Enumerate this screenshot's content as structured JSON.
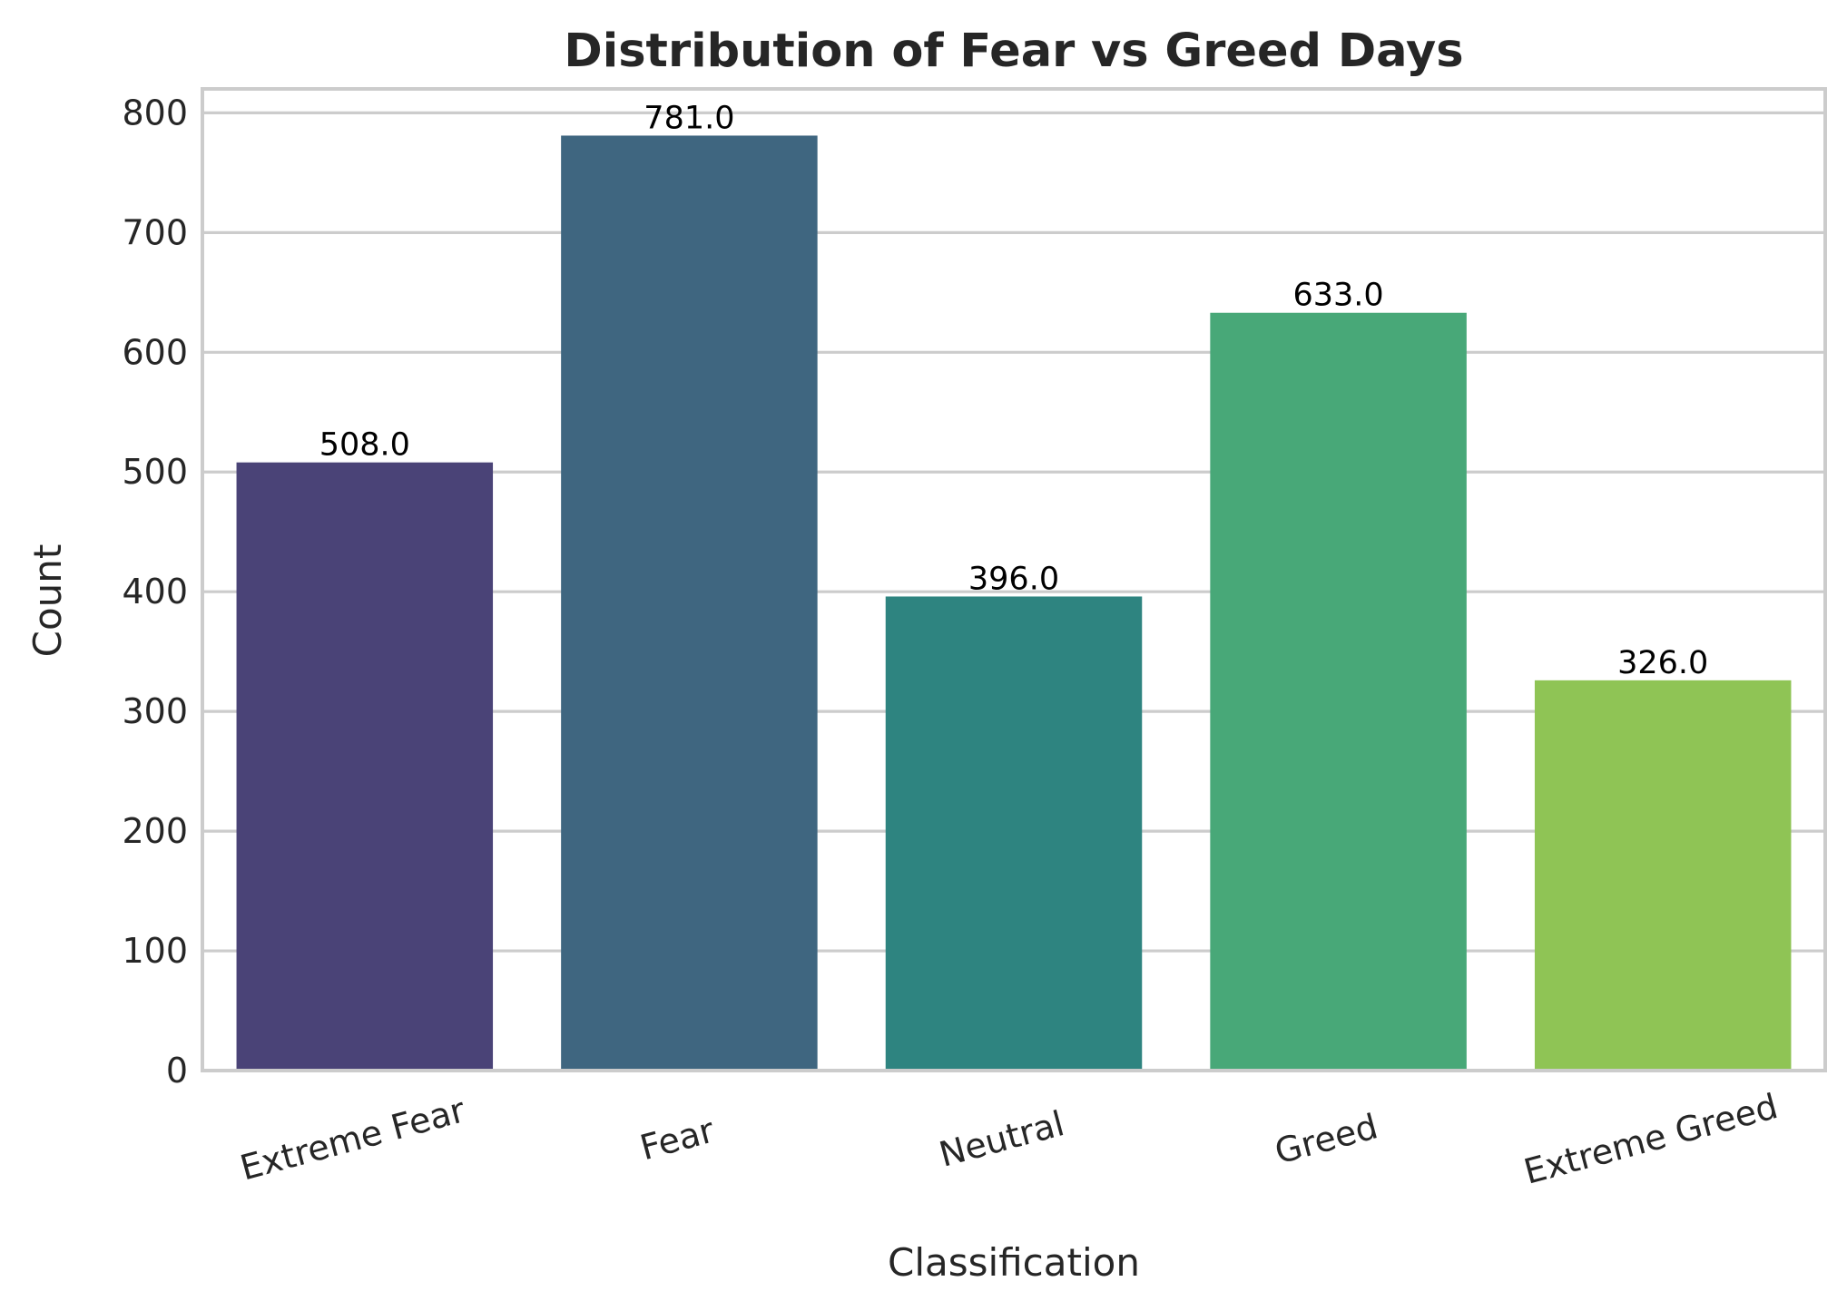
{
  "chart_data": {
    "type": "bar",
    "title": "Distribution of Fear vs Greed Days",
    "xlabel": "Classification",
    "ylabel": "Count",
    "categories": [
      "Extreme Fear",
      "Fear",
      "Neutral",
      "Greed",
      "Extreme Greed"
    ],
    "values": [
      508,
      781,
      396,
      633,
      326
    ],
    "value_labels": [
      "508.0",
      "781.0",
      "396.0",
      "633.0",
      "326.0"
    ],
    "ylim": [
      0,
      820
    ],
    "yticks": [
      0,
      100,
      200,
      300,
      400,
      500,
      600,
      700,
      800
    ],
    "ytick_labels": [
      "0",
      "100",
      "200",
      "300",
      "400",
      "500",
      "600",
      "700",
      "800"
    ],
    "grid": true,
    "colors": [
      "#4a4377",
      "#3f6680",
      "#2e8480",
      "#48a878",
      "#8fc455"
    ]
  }
}
